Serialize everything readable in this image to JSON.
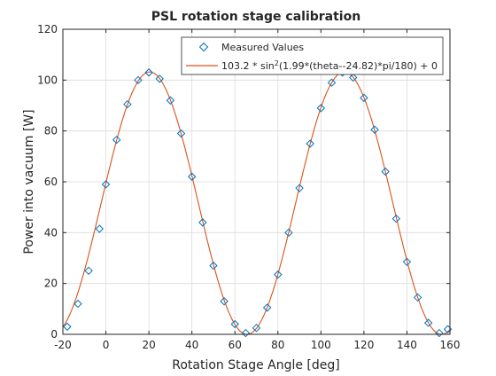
{
  "chart_data": {
    "type": "scatter",
    "title": "PSL rotation stage calibration",
    "xlabel": "Rotation Stage Angle [deg]",
    "ylabel": "Power into vacuum [W]",
    "xlim": [
      -20,
      160
    ],
    "ylim": [
      0,
      120
    ],
    "xticks": [
      "-20",
      "0",
      "20",
      "40",
      "60",
      "80",
      "100",
      "120",
      "140",
      "160"
    ],
    "yticks": [
      "0",
      "20",
      "40",
      "60",
      "80",
      "100",
      "120"
    ],
    "grid": true,
    "legend_position": "top-right",
    "series": [
      {
        "name": "Measured Values",
        "marker": "diamond",
        "color": "#0072BD",
        "x": [
          -18,
          -13,
          -8,
          -3,
          0,
          5,
          10,
          15,
          20,
          25,
          30,
          35,
          40,
          45,
          50,
          55,
          60,
          65,
          70,
          75,
          80,
          85,
          90,
          95,
          100,
          105,
          110,
          115,
          120,
          125,
          130,
          135,
          140,
          145,
          150,
          155,
          159
        ],
        "y": [
          3,
          12,
          25,
          41.5,
          59,
          76.5,
          90.5,
          100,
          103,
          100.5,
          92,
          79,
          62,
          44,
          27,
          13,
          4,
          0.5,
          2.5,
          10.5,
          23.5,
          40,
          57.5,
          75,
          89,
          99,
          103,
          101,
          93,
          80.5,
          64,
          45.5,
          28.5,
          14.5,
          4.5,
          0.5,
          2
        ]
      },
      {
        "name": "103.2 * sin²(1.99*(theta--24.82)*pi/180) + 0",
        "type": "line",
        "color": "#D95319",
        "A": 103.2,
        "k": 1.99,
        "theta0": -24.82,
        "c": 0
      }
    ],
    "legend": {
      "marker_label": "Measured Values",
      "fit_label_prefix": "103.2 * sin",
      "fit_label_sup": "2",
      "fit_label_suffix": "(1.99*(theta--24.82)*pi/180) + 0"
    }
  }
}
